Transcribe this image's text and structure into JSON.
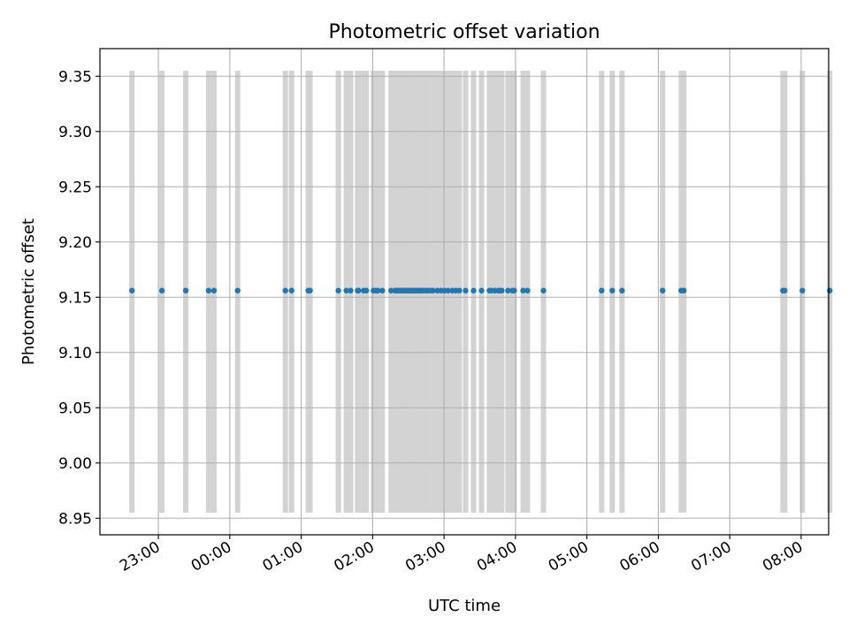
{
  "chart_data": {
    "type": "scatter",
    "title": "Photometric offset variation",
    "xlabel": "UTC time",
    "ylabel": "Photometric offset",
    "xlim_minutes_from_2300": [
      -49.1,
      563.1
    ],
    "ylim": [
      8.935,
      9.375
    ],
    "grid": true,
    "x_ticks": [
      "23:00",
      "00:00",
      "01:00",
      "02:00",
      "03:00",
      "04:00",
      "05:00",
      "06:00",
      "07:00",
      "08:00"
    ],
    "y_ticks": [
      "8.95",
      "9.00",
      "9.05",
      "9.10",
      "9.15",
      "9.20",
      "9.25",
      "9.30",
      "9.35"
    ],
    "y_tick_values": [
      8.95,
      9.0,
      9.05,
      9.1,
      9.15,
      9.2,
      9.25,
      9.3,
      9.35
    ],
    "point_color": "#1f77b4",
    "band_color": "#d3d3d3",
    "band_ymin": 8.955,
    "band_ymax": 9.355,
    "series": [
      {
        "y": 9.156,
        "x_minutes_from_2300": [
          -22.2,
          3.0,
          23.0,
          42.2,
          46.7,
          66.6,
          106.7,
          111.9,
          125.9,
          127.4,
          151.2,
          157.9,
          161.5,
          167.4,
          168.1,
          172.5,
          174.7,
          180.7,
          182.9,
          184.4,
          188.1,
          195.5,
          198.8,
          200.3,
          201.8,
          203.3,
          204.8,
          206.3,
          207.8,
          209.2,
          210.7,
          212.2,
          213.7,
          215.2,
          216.7,
          218.1,
          219.6,
          221.1,
          222.6,
          224.8,
          226.3,
          228.5,
          230.7,
          234.4,
          237.4,
          240.3,
          243.3,
          247.0,
          250.0,
          252.9,
          258.1,
          264.8,
          271.5,
          278.1,
          279.6,
          282.6,
          285.6,
          286.3,
          288.5,
          293.7,
          297.4,
          298.9,
          306.4,
          310.1,
          323.5,
          372.4,
          381.3,
          389.5,
          423.6,
          439.2,
          441.4,
          524.7,
          526.2,
          541.0,
          564.0
        ]
      }
    ]
  }
}
